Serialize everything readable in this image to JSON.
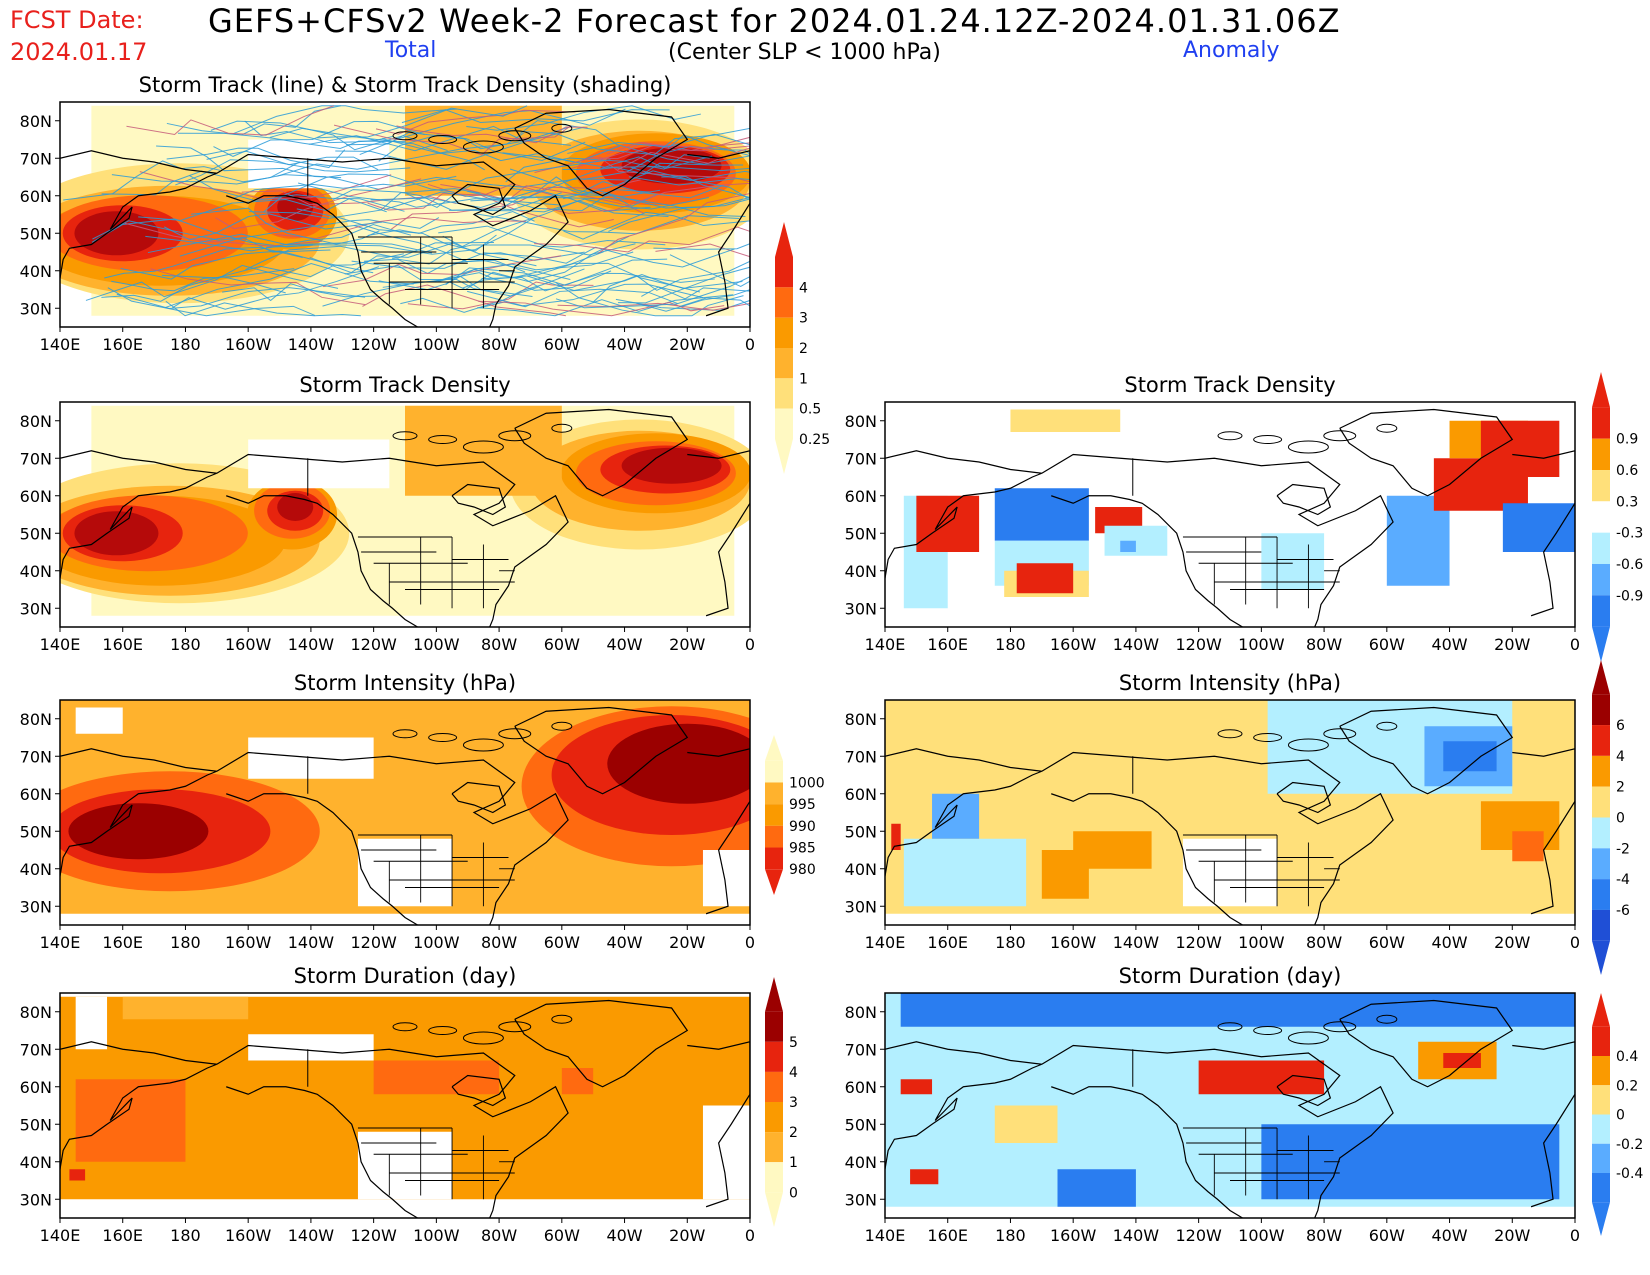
{
  "header": {
    "fcst_label": "FCST Date:",
    "fcst_date": "2024.01.17",
    "title": "GEFS+CFSv2 Week-2 Forecast for 2024.01.24.12Z-2024.01.31.06Z",
    "subtitle": "(Center SLP < 1000 hPa)",
    "total_label": "Total",
    "anomaly_label": "Anomaly"
  },
  "axes": {
    "lon_ticks": [
      "140E",
      "160E",
      "180",
      "160W",
      "140W",
      "120W",
      "100W",
      "80W",
      "60W",
      "40W",
      "20W",
      "0"
    ],
    "lat_ticks": [
      "80N",
      "70N",
      "60N",
      "50N",
      "40N",
      "30N"
    ]
  },
  "colors": {
    "yellow_light": "#fff9c2",
    "yellow": "#ffe07a",
    "orange_light": "#ffb22d",
    "orange": "#fa9a00",
    "orange_dark": "#ff6a10",
    "red": "#e7240e",
    "red_dark": "#b50a0a",
    "maroon": "#9b0000",
    "blue_light": "#b3efff",
    "blue": "#5aacff",
    "blue_mid": "#2a7df0",
    "blue_dark": "#1f4fd6",
    "track_line": "#2a9bd8",
    "track_line_dense": "#c65a7a"
  },
  "panels": [
    {
      "id": "track-lines-total",
      "title": "Storm Track (line) & Storm Track Density (shading)",
      "colorbar_labels": [
        "4",
        "3",
        "2",
        "1",
        "0.5",
        "0.25"
      ]
    },
    {
      "id": "density-total",
      "title": "Storm Track Density"
    },
    {
      "id": "density-anomaly",
      "title": "Storm Track Density",
      "colorbar_labels": [
        "0.9",
        "0.6",
        "0.3",
        "-0.3",
        "-0.6",
        "-0.9"
      ]
    },
    {
      "id": "intensity-total",
      "title": "Storm Intensity (hPa)",
      "colorbar_labels": [
        "1000",
        "995",
        "990",
        "985",
        "980"
      ]
    },
    {
      "id": "intensity-anomaly",
      "title": "Storm Intensity (hPa)",
      "colorbar_labels": [
        "6",
        "4",
        "2",
        "0",
        "-2",
        "-4",
        "-6"
      ]
    },
    {
      "id": "duration-total",
      "title": "Storm Duration (day)",
      "colorbar_labels": [
        "5",
        "4",
        "3",
        "2",
        "1",
        "0"
      ]
    },
    {
      "id": "duration-anomaly",
      "title": "Storm Duration (day)",
      "colorbar_labels": [
        "0.4",
        "0.2",
        "0",
        "-0.2",
        "-0.4"
      ]
    }
  ]
}
